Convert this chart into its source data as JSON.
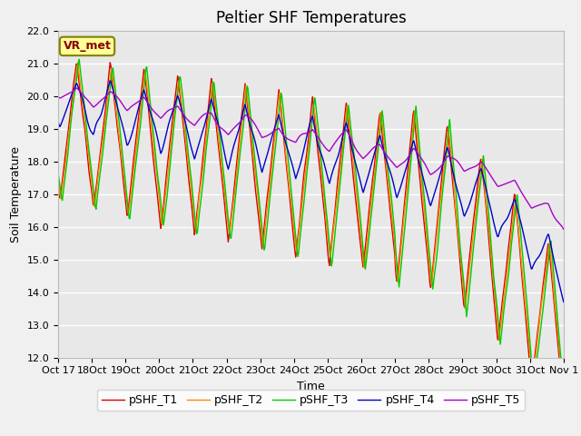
{
  "title": "Peltier SHF Temperatures",
  "xlabel": "Time",
  "ylabel": "Soil Temperature",
  "ylim": [
    12.0,
    22.0
  ],
  "yticks": [
    12.0,
    13.0,
    14.0,
    15.0,
    16.0,
    17.0,
    18.0,
    19.0,
    20.0,
    21.0,
    22.0
  ],
  "xtick_labels": [
    "Oct 17",
    "Oct 18",
    "Oct 19",
    "Oct 20",
    "Oct 21",
    "Oct 22",
    "Oct 23",
    "Oct 24",
    "Oct 25",
    "Oct 26",
    "Oct 27",
    "Oct 28",
    "Oct 29",
    "Oct 30",
    "Oct 31",
    "Nov 1"
  ],
  "bg_color": "#e8e8e8",
  "plot_bg": "#e8e8e8",
  "fig_bg": "#f0f0f0",
  "grid_color": "#ffffff",
  "annotation_text": "VR_met",
  "annotation_bg": "#ffff99",
  "annotation_border": "#808000",
  "series_colors": {
    "pSHF_T1": "#dd0000",
    "pSHF_T2": "#ff8800",
    "pSHF_T3": "#00cc00",
    "pSHF_T4": "#0000cc",
    "pSHF_T5": "#aa00cc"
  },
  "lw": 1.0,
  "title_fontsize": 12,
  "label_fontsize": 9,
  "tick_fontsize": 8
}
